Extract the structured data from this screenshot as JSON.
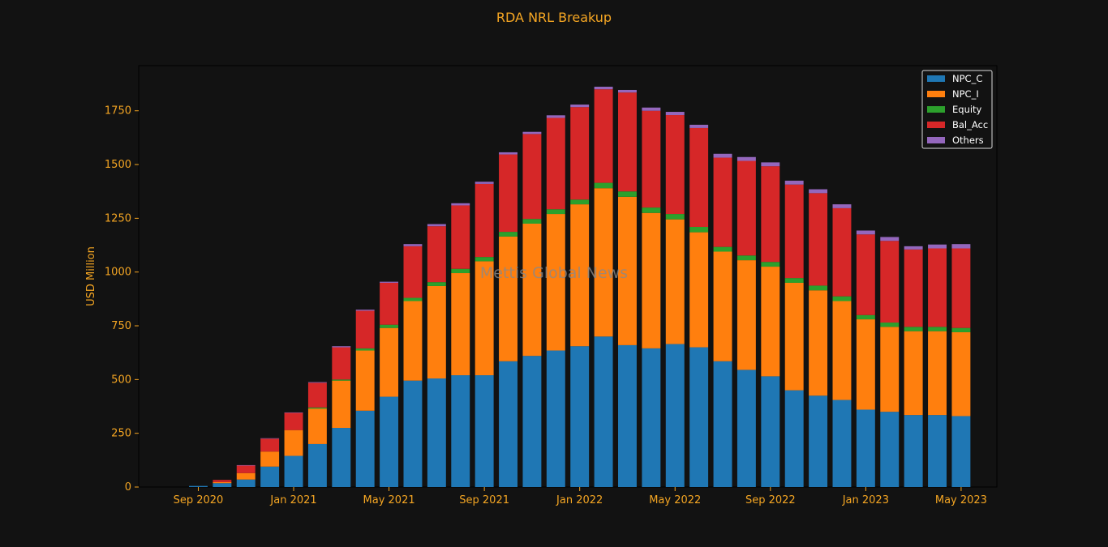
{
  "chart_data": {
    "type": "bar",
    "stacked": true,
    "title": "RDA NRL Breakup",
    "xlabel": "",
    "ylabel": "USD Million",
    "watermark": "Mettis Global News",
    "ylim": [
      0,
      1960
    ],
    "yticks": [
      0,
      250,
      500,
      750,
      1000,
      1250,
      1500,
      1750
    ],
    "x_axis": {
      "start": "2020-07",
      "end": "2023-06",
      "tick_labels": [
        "Sep 2020",
        "Jan 2021",
        "May 2021",
        "Sep 2021",
        "Jan 2022",
        "May 2022",
        "Sep 2022",
        "Jan 2023",
        "May 2023"
      ],
      "tick_months": [
        "2020-09",
        "2021-01",
        "2021-05",
        "2021-09",
        "2022-01",
        "2022-05",
        "2022-09",
        "2023-01",
        "2023-05"
      ]
    },
    "categories": [
      "2020-09",
      "2020-10",
      "2020-11",
      "2020-12",
      "2021-01",
      "2021-02",
      "2021-03",
      "2021-04",
      "2021-05",
      "2021-06",
      "2021-07",
      "2021-08",
      "2021-09",
      "2021-10",
      "2021-11",
      "2021-12",
      "2022-01",
      "2022-02",
      "2022-03",
      "2022-04",
      "2022-05",
      "2022-06",
      "2022-07",
      "2022-08",
      "2022-09",
      "2022-10",
      "2022-11",
      "2022-12",
      "2023-01",
      "2023-02",
      "2023-03",
      "2023-04",
      "2023-05"
    ],
    "legend_position": "top-right",
    "series": [
      {
        "name": "NPC_C",
        "color": "#1f77b4",
        "values": [
          5,
          18,
          35,
          95,
          145,
          200,
          275,
          355,
          420,
          495,
          505,
          520,
          520,
          585,
          610,
          635,
          655,
          700,
          660,
          645,
          665,
          650,
          585,
          545,
          515,
          450,
          425,
          405,
          360,
          350,
          335,
          335,
          330
        ]
      },
      {
        "name": "NPC_I",
        "color": "#ff7f0e",
        "values": [
          0,
          5,
          30,
          70,
          120,
          165,
          220,
          280,
          320,
          370,
          430,
          475,
          530,
          580,
          615,
          635,
          660,
          690,
          690,
          630,
          580,
          535,
          510,
          510,
          510,
          500,
          490,
          460,
          420,
          395,
          390,
          390,
          390
        ]
      },
      {
        "name": "Equity",
        "color": "#2ca02c",
        "values": [
          0,
          0,
          0,
          0,
          0,
          5,
          5,
          10,
          15,
          15,
          18,
          20,
          20,
          22,
          22,
          22,
          22,
          25,
          25,
          25,
          25,
          25,
          22,
          22,
          22,
          22,
          22,
          22,
          20,
          20,
          20,
          20,
          20
        ]
      },
      {
        "name": "Bal_Acc",
        "color": "#d62728",
        "values": [
          0,
          10,
          35,
          60,
          80,
          115,
          150,
          175,
          195,
          240,
          260,
          295,
          340,
          360,
          395,
          425,
          430,
          435,
          460,
          450,
          460,
          460,
          415,
          440,
          445,
          435,
          430,
          410,
          375,
          380,
          360,
          365,
          370
        ]
      },
      {
        "name": "Others",
        "color": "#9467bd",
        "values": [
          0,
          0,
          2,
          2,
          2,
          3,
          5,
          5,
          5,
          10,
          10,
          10,
          10,
          10,
          10,
          12,
          12,
          12,
          12,
          15,
          15,
          15,
          18,
          18,
          18,
          18,
          18,
          18,
          18,
          18,
          15,
          18,
          20
        ]
      }
    ]
  },
  "colors": {
    "background": "#121212",
    "plot_background": "#121212",
    "text": "#f5a623",
    "legend_text": "#ffffff",
    "legend_border": "#ffffff",
    "axes_edge": "#000000",
    "watermark": "#8a8a8a"
  }
}
